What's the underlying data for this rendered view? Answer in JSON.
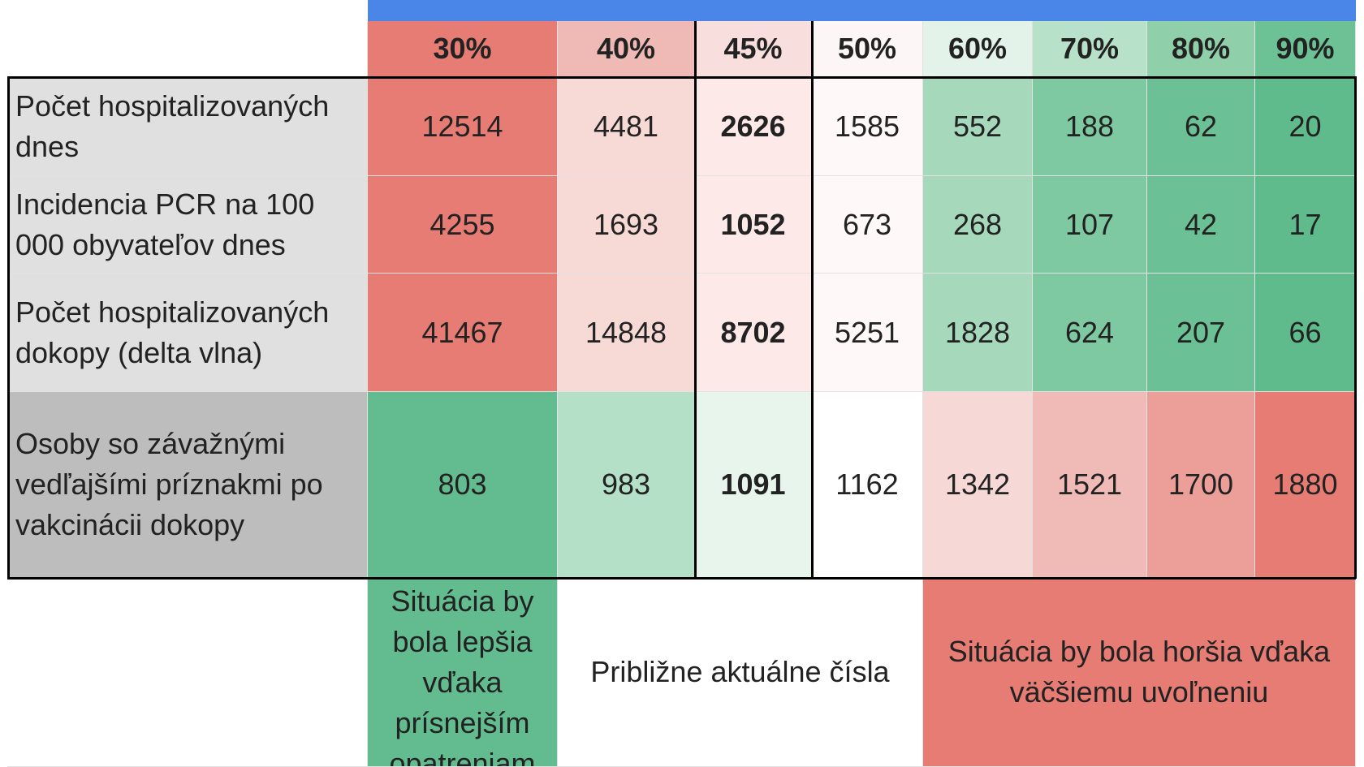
{
  "header": {
    "columns": [
      "30%",
      "40%",
      "45%",
      "50%",
      "60%",
      "70%",
      "80%",
      "90%"
    ]
  },
  "rows": [
    {
      "label": "Počet hospitalizovaných dnes",
      "values": [
        12514,
        4481,
        2626,
        1585,
        552,
        188,
        62,
        20
      ]
    },
    {
      "label": "Incidencia PCR na 100 000 obyvateľov dnes",
      "values": [
        4255,
        1693,
        1052,
        673,
        268,
        107,
        42,
        17
      ]
    },
    {
      "label": "Počet hospitalizovaných dokopy (delta vlna)",
      "values": [
        41467,
        14848,
        8702,
        5251,
        1828,
        624,
        207,
        66
      ]
    },
    {
      "label": "Osoby so závažnými vedľajšími príznakmi po vakcinácii dokopy",
      "values": [
        803,
        983,
        1091,
        1162,
        1342,
        1521,
        1700,
        1880
      ]
    }
  ],
  "footer": {
    "better": "Situácia by bola lepšia vďaka prísnejším opatreniam",
    "current": "Približne aktuálne čísla",
    "worse": "Situácia by bola horšia vďaka väčšiemu uvoľneniu"
  }
}
